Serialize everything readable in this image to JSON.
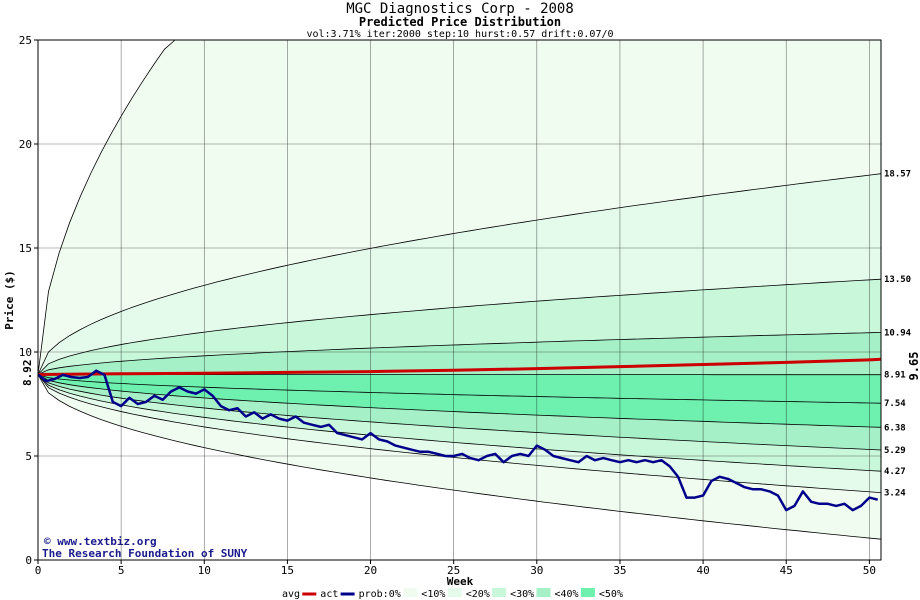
{
  "chart_data": {
    "type": "area",
    "title": "MGC Diagnostics Corp - 2008",
    "subtitle": "Predicted Price Distribution",
    "params": "vol:3.71% iter:2000 step:10 hurst:0.57 drift:0.07/0",
    "xlabel": "Week",
    "ylabel": "Price ($)",
    "xlim": [
      0,
      50.7
    ],
    "ylim": [
      0,
      25
    ],
    "xticks": [
      "0",
      "5",
      "10",
      "15",
      "20",
      "25",
      "30",
      "35",
      "40",
      "45",
      "50"
    ],
    "yticks": [
      "0",
      "5",
      "10",
      "15",
      "20",
      "25"
    ],
    "grid": true,
    "start_price": "8.92",
    "last_price": "9.65",
    "end_labels": [
      "18.57",
      "13.50",
      "10.94",
      "8.91",
      "7.54",
      "6.38",
      "5.29",
      "4.27",
      "3.24"
    ],
    "quantile_curves_end": [
      25,
      18.57,
      13.5,
      10.94,
      8.91,
      7.54,
      6.38,
      5.29,
      4.27,
      3.24,
      1.0
    ],
    "band_colors": [
      "#f1fcf1",
      "#e4fbec",
      "#c8f7da",
      "#a5f0c6",
      "#6ef0ae"
    ],
    "avg_series": {
      "name": "avg",
      "x": [
        0,
        5,
        10,
        15,
        20,
        25,
        30,
        35,
        40,
        45,
        50,
        50.7
      ],
      "y": [
        8.92,
        8.95,
        8.98,
        9.02,
        9.06,
        9.12,
        9.2,
        9.3,
        9.4,
        9.5,
        9.62,
        9.65
      ]
    },
    "act_series": {
      "name": "act",
      "x": [
        0,
        0.5,
        1,
        1.5,
        2,
        2.5,
        3,
        3.5,
        4,
        4.5,
        5,
        5.5,
        6,
        6.5,
        7,
        7.5,
        8,
        8.5,
        9,
        9.5,
        10,
        10.5,
        11,
        11.5,
        12,
        12.5,
        13,
        13.5,
        14,
        14.5,
        15,
        15.5,
        16,
        16.5,
        17,
        17.5,
        18,
        18.5,
        19,
        19.5,
        20,
        20.5,
        21,
        21.5,
        22,
        22.5,
        23,
        23.5,
        24,
        24.5,
        25,
        25.5,
        26,
        26.5,
        27,
        27.5,
        28,
        28.5,
        29,
        29.5,
        30,
        30.5,
        31,
        31.5,
        32,
        32.5,
        33,
        33.5,
        34,
        34.5,
        35,
        35.5,
        36,
        36.5,
        37,
        37.5,
        38,
        38.5,
        39,
        39.5,
        40,
        40.5,
        41,
        41.5,
        42,
        42.5,
        43,
        43.5,
        44,
        44.5,
        45,
        45.5,
        46,
        46.5,
        47,
        47.5,
        48,
        48.5,
        49,
        49.5,
        50,
        50.5
      ],
      "y": [
        8.92,
        8.6,
        8.7,
        8.9,
        8.8,
        8.75,
        8.8,
        9.1,
        8.9,
        7.6,
        7.4,
        7.8,
        7.5,
        7.6,
        7.9,
        7.7,
        8.1,
        8.3,
        8.1,
        8.0,
        8.2,
        7.9,
        7.4,
        7.2,
        7.3,
        6.9,
        7.1,
        6.8,
        7.0,
        6.8,
        6.7,
        6.9,
        6.6,
        6.5,
        6.4,
        6.5,
        6.1,
        6.0,
        5.9,
        5.8,
        6.1,
        5.8,
        5.7,
        5.5,
        5.4,
        5.3,
        5.2,
        5.2,
        5.1,
        5.0,
        5.0,
        5.1,
        4.9,
        4.8,
        5.0,
        5.1,
        4.7,
        5.0,
        5.1,
        5.0,
        5.5,
        5.3,
        5.0,
        4.9,
        4.8,
        4.7,
        5.0,
        4.8,
        4.9,
        4.8,
        4.7,
        4.8,
        4.7,
        4.8,
        4.7,
        4.8,
        4.5,
        4.0,
        3.0,
        3.0,
        3.1,
        3.8,
        4.0,
        3.9,
        3.7,
        3.5,
        3.4,
        3.4,
        3.3,
        3.1,
        2.4,
        2.6,
        3.3,
        2.8,
        2.7,
        2.7,
        2.6,
        2.7,
        2.4,
        2.6,
        3.0,
        2.9
      ]
    },
    "legend": [
      "avg",
      "act",
      "prob:0%",
      "<10%",
      "<20%",
      "<30%",
      "<40%",
      "<50%"
    ],
    "legend_placement": "bottom",
    "credits": [
      "www.textbiz.org",
      "The Research Foundation of SUNY"
    ],
    "colors": {
      "avg": "#cc0000",
      "act": "#00008b",
      "last_price": "#cc0000",
      "grid": "#000000"
    }
  }
}
